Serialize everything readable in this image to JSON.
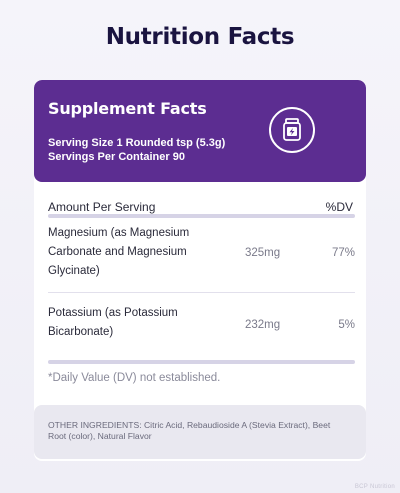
{
  "page": {
    "title": "Nutrition Facts"
  },
  "header": {
    "title": "Supplement Facts",
    "serving_size": "Serving Size 1 Rounded tsp (5.3g)",
    "servings_per_container": "Servings Per Container 90",
    "icon": "supplement-jar-icon",
    "background_color": "#5c2d91"
  },
  "table": {
    "columns": {
      "name": "Amount Per Serving",
      "dv": "%DV"
    },
    "rows": [
      {
        "name": "Magnesium (as Magnesium Carbonate and Magnesium Glycinate)",
        "amount": "325mg",
        "dv": "77%"
      },
      {
        "name": "Potassium (as Potassium Bicarbonate)",
        "amount": "232mg",
        "dv": "5%"
      }
    ]
  },
  "footnote": "*Daily Value (DV) not established.",
  "ingredients": "OTHER INGREDIENTS: Citric Acid, Rebaudioside A (Stevia Extract), Beet Root (color), Natural Flavor",
  "watermark": "BCP Nutrition"
}
